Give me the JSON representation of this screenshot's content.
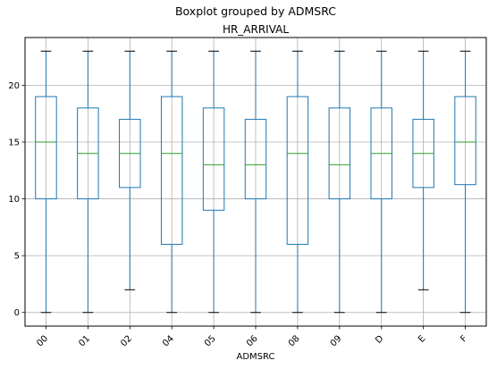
{
  "chart_data": {
    "type": "boxplot",
    "suptitle": "Boxplot grouped by ADMSRC",
    "title": "HR_ARRIVAL",
    "xlabel": "ADMSRC",
    "ylabel": "",
    "ylim": [
      -1.2,
      24.2
    ],
    "yticks": [
      0,
      5,
      10,
      15,
      20
    ],
    "grid": true,
    "colors": {
      "box": "#1f77b4",
      "median": "#2ca02c",
      "whisker": "#1f77b4",
      "cap": "#000000",
      "grid": "#b0b0b0",
      "axis": "#000000"
    },
    "categories": [
      "00",
      "01",
      "02",
      "04",
      "05",
      "06",
      "08",
      "09",
      "D",
      "E",
      "F"
    ],
    "boxes": [
      {
        "category": "00",
        "whislo": 0,
        "q1": 10,
        "med": 15,
        "q3": 19,
        "whishi": 23
      },
      {
        "category": "01",
        "whislo": 0,
        "q1": 10,
        "med": 14,
        "q3": 18,
        "whishi": 23
      },
      {
        "category": "02",
        "whislo": 2,
        "q1": 11,
        "med": 14,
        "q3": 17,
        "whishi": 23
      },
      {
        "category": "04",
        "whislo": 0,
        "q1": 6,
        "med": 14,
        "q3": 19,
        "whishi": 23
      },
      {
        "category": "05",
        "whislo": 0,
        "q1": 9,
        "med": 13,
        "q3": 18,
        "whishi": 23
      },
      {
        "category": "06",
        "whislo": 0,
        "q1": 10,
        "med": 13,
        "q3": 17,
        "whishi": 23
      },
      {
        "category": "08",
        "whislo": 0,
        "q1": 6,
        "med": 14,
        "q3": 19,
        "whishi": 23
      },
      {
        "category": "09",
        "whislo": 0,
        "q1": 10,
        "med": 13,
        "q3": 18,
        "whishi": 23
      },
      {
        "category": "D",
        "whislo": 0,
        "q1": 10,
        "med": 14,
        "q3": 18,
        "whishi": 23
      },
      {
        "category": "E",
        "whislo": 2,
        "q1": 11,
        "med": 14,
        "q3": 17,
        "whishi": 23
      },
      {
        "category": "F",
        "whislo": 0,
        "q1": 11.25,
        "med": 15,
        "q3": 19,
        "whishi": 23
      }
    ]
  }
}
